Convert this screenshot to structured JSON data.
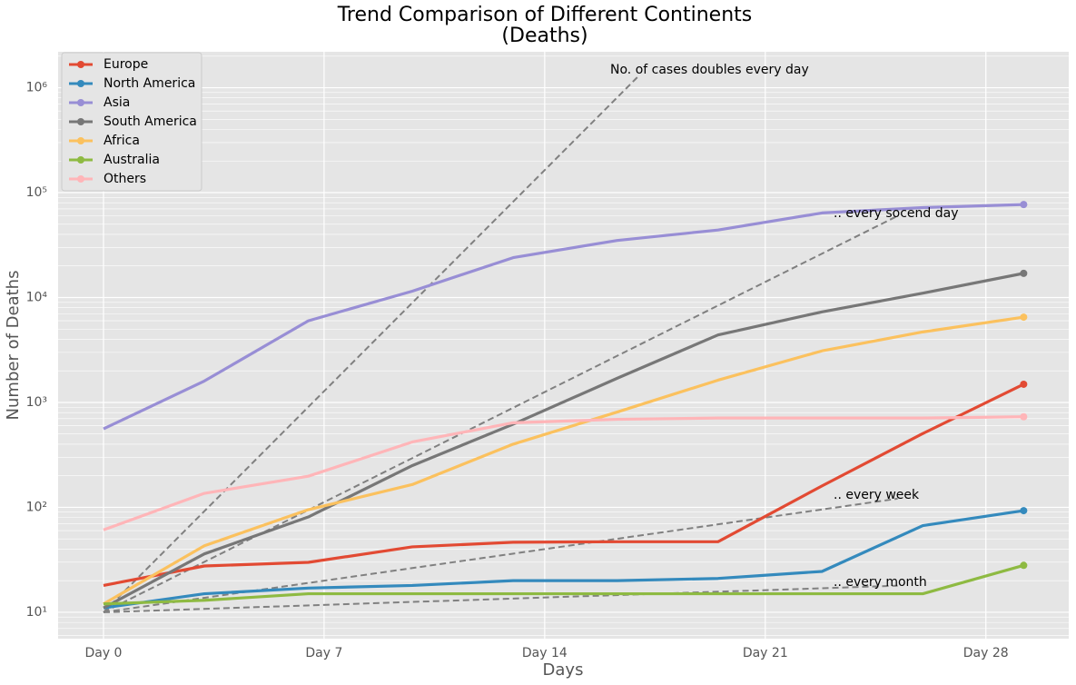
{
  "chart_data": {
    "type": "line",
    "title": [
      "Trend Comparison of Different Continents",
      "(Deaths)"
    ],
    "xlabel": "Days",
    "ylabel": "Number of Deaths",
    "log_y": true,
    "grid": true,
    "legend": "upper left",
    "x": [
      0,
      3.2,
      6.5,
      9.8,
      13,
      16.3,
      19.5,
      22.8,
      26,
      29.2
    ],
    "xlim": [
      -1.44,
      30.63
    ],
    "xticks": [
      {
        "value": 0,
        "label": "Day 0"
      },
      {
        "value": 7,
        "label": "Day 7"
      },
      {
        "value": 14,
        "label": "Day 14"
      },
      {
        "value": 21,
        "label": "Day 21"
      },
      {
        "value": 28,
        "label": "Day 28"
      }
    ],
    "ylim": [
      5.6,
      2200000
    ],
    "yticks": [
      {
        "value": 10,
        "label": "10¹"
      },
      {
        "value": 100,
        "label": "10²"
      },
      {
        "value": 1000,
        "label": "10³"
      },
      {
        "value": 10000,
        "label": "10⁴"
      },
      {
        "value": 100000,
        "label": "10⁵"
      },
      {
        "value": 1000000,
        "label": "10⁶"
      }
    ],
    "series": [
      {
        "name": "Europe",
        "color": "#E24A33",
        "values": [
          18,
          27.6,
          29.9,
          42,
          46.5,
          47,
          47,
          160,
          505,
          1490
        ]
      },
      {
        "name": "North America",
        "color": "#348ABD",
        "values": [
          11,
          15,
          17,
          18,
          20,
          20,
          21,
          24.5,
          67,
          93
        ]
      },
      {
        "name": "Asia",
        "color": "#988ED5",
        "values": [
          560,
          1600,
          6000,
          11500,
          24000,
          35000,
          44000,
          64000,
          72000,
          77000
        ]
      },
      {
        "name": "South America",
        "color": "#777777",
        "values": [
          11,
          36,
          81,
          250,
          620,
          1700,
          4400,
          7300,
          11000,
          17000
        ]
      },
      {
        "name": "Africa",
        "color": "#FBC15E",
        "values": [
          12,
          43,
          95,
          165,
          400,
          810,
          1630,
          3100,
          4700,
          6500
        ]
      },
      {
        "name": "Australia",
        "color": "#8EBA42",
        "values": [
          12,
          13,
          15,
          15,
          15,
          15,
          15,
          15,
          15,
          28
        ]
      },
      {
        "name": "Others",
        "color": "#FFB5B8",
        "values": [
          61,
          136,
          198,
          420,
          640,
          690,
          710,
          710,
          710,
          730
        ]
      }
    ],
    "reference_lines": [
      {
        "color": "#808080",
        "x": [
          0,
          17
        ],
        "values": [
          10,
          1310720
        ]
      },
      {
        "color": "#808080",
        "x": [
          0,
          25.2
        ],
        "values": [
          10,
          60000
        ]
      },
      {
        "color": "#808080",
        "x": [
          0,
          25.2
        ],
        "values": [
          10,
          121
        ]
      },
      {
        "color": "#808080",
        "x": [
          0,
          25.2
        ],
        "values": [
          10,
          17.9
        ]
      }
    ],
    "annotations": [
      "No. of cases doubles every day",
      ".. every socend day",
      ".. every week",
      ".. every month"
    ]
  }
}
